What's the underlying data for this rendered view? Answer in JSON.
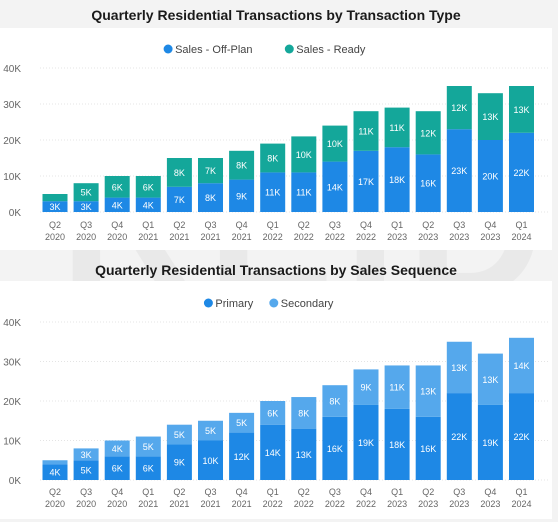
{
  "watermark": "REIDIN",
  "chart_data": [
    {
      "type": "bar",
      "stacked": true,
      "title": "Quarterly Residential Transactions by Transaction Type",
      "categories": [
        [
          "Q2",
          "2020"
        ],
        [
          "Q3",
          "2020"
        ],
        [
          "Q4",
          "2020"
        ],
        [
          "Q1",
          "2021"
        ],
        [
          "Q2",
          "2021"
        ],
        [
          "Q3",
          "2021"
        ],
        [
          "Q4",
          "2021"
        ],
        [
          "Q1",
          "2022"
        ],
        [
          "Q2",
          "2022"
        ],
        [
          "Q3",
          "2022"
        ],
        [
          "Q4",
          "2022"
        ],
        [
          "Q1",
          "2023"
        ],
        [
          "Q2",
          "2023"
        ],
        [
          "Q3",
          "2023"
        ],
        [
          "Q4",
          "2023"
        ],
        [
          "Q1",
          "2024"
        ]
      ],
      "series": [
        {
          "name": "Sales - Off-Plan",
          "color": "#1e88e5",
          "values": [
            3000,
            3000,
            4000,
            4000,
            7000,
            8000,
            9000,
            11000,
            11000,
            14000,
            17000,
            18000,
            16000,
            23000,
            20000,
            22000
          ],
          "labels": [
            "3K",
            "3K",
            "4K",
            "4K",
            "7K",
            "8K",
            "9K",
            "11K",
            "11K",
            "14K",
            "17K",
            "18K",
            "16K",
            "23K",
            "20K",
            "22K"
          ]
        },
        {
          "name": "Sales - Ready",
          "color": "#14a79a",
          "values": [
            2000,
            5000,
            6000,
            6000,
            8000,
            7000,
            8000,
            8000,
            10000,
            10000,
            11000,
            11000,
            12000,
            12000,
            13000,
            13000
          ],
          "labels": [
            "",
            "5K",
            "6K",
            "6K",
            "8K",
            "7K",
            "8K",
            "8K",
            "10K",
            "10K",
            "11K",
            "11K",
            "12K",
            "12K",
            "13K",
            "13K"
          ]
        }
      ],
      "ylim": [
        0,
        40000
      ],
      "yticks": [
        "0K",
        "10K",
        "20K",
        "30K",
        "40K"
      ],
      "legend": "top-center",
      "grid": true
    },
    {
      "type": "bar",
      "stacked": true,
      "title": "Quarterly Residential Transactions by Sales Sequence",
      "categories": [
        [
          "Q2",
          "2020"
        ],
        [
          "Q3",
          "2020"
        ],
        [
          "Q4",
          "2020"
        ],
        [
          "Q1",
          "2021"
        ],
        [
          "Q2",
          "2021"
        ],
        [
          "Q3",
          "2021"
        ],
        [
          "Q4",
          "2021"
        ],
        [
          "Q1",
          "2022"
        ],
        [
          "Q2",
          "2022"
        ],
        [
          "Q3",
          "2022"
        ],
        [
          "Q4",
          "2022"
        ],
        [
          "Q1",
          "2023"
        ],
        [
          "Q2",
          "2023"
        ],
        [
          "Q3",
          "2023"
        ],
        [
          "Q4",
          "2023"
        ],
        [
          "Q1",
          "2024"
        ]
      ],
      "series": [
        {
          "name": "Primary",
          "color": "#1e88e5",
          "values": [
            4000,
            5000,
            6000,
            6000,
            9000,
            10000,
            12000,
            14000,
            13000,
            16000,
            19000,
            18000,
            16000,
            22000,
            19000,
            22000
          ],
          "labels": [
            "4K",
            "5K",
            "6K",
            "6K",
            "9K",
            "10K",
            "12K",
            "14K",
            "13K",
            "16K",
            "19K",
            "18K",
            "16K",
            "22K",
            "19K",
            "22K"
          ]
        },
        {
          "name": "Secondary",
          "color": "#55a8ec",
          "values": [
            1000,
            3000,
            4000,
            5000,
            5000,
            5000,
            5000,
            6000,
            8000,
            8000,
            9000,
            11000,
            13000,
            13000,
            13000,
            14000
          ],
          "labels": [
            "",
            "3K",
            "4K",
            "5K",
            "5K",
            "5K",
            "5K",
            "6K",
            "8K",
            "8K",
            "9K",
            "11K",
            "13K",
            "13K",
            "13K",
            "14K"
          ]
        }
      ],
      "ylim": [
        0,
        45000
      ],
      "yticks": [
        "0K",
        "10K",
        "20K",
        "30K",
        "40K"
      ],
      "legend": "top-center",
      "grid": true
    }
  ]
}
